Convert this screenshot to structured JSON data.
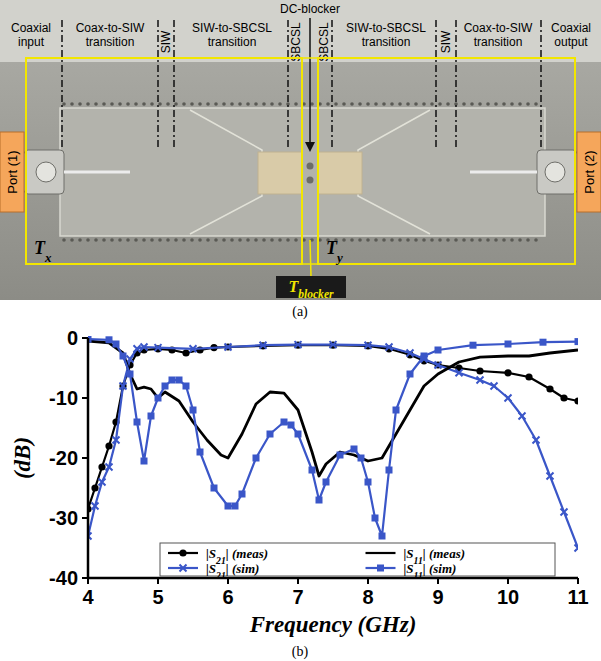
{
  "photo": {
    "section_labels": [
      "Coaxial input",
      "Coax-to-SIW transition",
      "SIW",
      "SIW-to-SBCSL transition",
      "SBCSL",
      "SBCSL",
      "SIW-to-SBCSL transition",
      "SIW",
      "Coax-to-SIW transition",
      "Coaxial output"
    ],
    "dc_blocker": "DC-blocker",
    "ports": [
      "Port (1)",
      "Port (2)"
    ],
    "blocks": [
      "Tx",
      "Ty",
      "Tblocker"
    ]
  },
  "captions": [
    "(a)",
    "(b)"
  ],
  "chart_data": {
    "type": "line",
    "x_label": "Frequency (GHz)",
    "y_label": "(dB)",
    "xlim": [
      4,
      11
    ],
    "ylim": [
      -40,
      0
    ],
    "xticks": [
      4,
      5,
      6,
      7,
      8,
      9,
      10,
      11
    ],
    "yticks": [
      -40,
      -30,
      -20,
      -10,
      0
    ],
    "grid": false,
    "legend": "lower center",
    "series": [
      {
        "name": "|S21| (meas)",
        "color": "#000000",
        "marker": "circle",
        "line_style": "solid",
        "x": [
          4,
          4.1,
          4.2,
          4.3,
          4.4,
          4.5,
          4.6,
          4.7,
          4.8,
          5.0,
          5.2,
          5.4,
          5.6,
          5.8,
          6.0,
          6.5,
          7.0,
          7.5,
          8.0,
          8.3,
          8.6,
          8.8,
          9.0,
          9.3,
          9.6,
          10.0,
          10.3,
          10.6,
          10.8,
          11.0
        ],
        "values": [
          -28.5,
          -25,
          -21.5,
          -18,
          -14,
          -8,
          -4.5,
          -2.5,
          -2,
          -1.8,
          -2,
          -2.5,
          -2,
          -1.6,
          -1.5,
          -1.3,
          -1.2,
          -1.2,
          -1.3,
          -1.8,
          -2.8,
          -3.8,
          -4.5,
          -5,
          -5.5,
          -5.8,
          -6.5,
          -8.5,
          -10,
          -10.5
        ]
      },
      {
        "name": "|S21| (sim)",
        "color": "#3a56c8",
        "marker": "x",
        "line_style": "solid",
        "x": [
          4,
          4.1,
          4.2,
          4.3,
          4.4,
          4.5,
          4.6,
          4.7,
          4.8,
          5.0,
          5.5,
          6.0,
          6.5,
          7.0,
          7.5,
          8.0,
          8.3,
          8.6,
          8.8,
          9.0,
          9.3,
          9.6,
          9.8,
          10.0,
          10.2,
          10.4,
          10.6,
          10.8,
          11.0
        ],
        "values": [
          -33,
          -28,
          -24,
          -21.5,
          -17,
          -8,
          -3.5,
          -1.8,
          -1.5,
          -1.6,
          -1.8,
          -1.5,
          -1.2,
          -1.1,
          -1.1,
          -1.2,
          -1.5,
          -2.5,
          -3.5,
          -4.5,
          -5.8,
          -7,
          -8,
          -10,
          -13,
          -17,
          -23,
          -29,
          -35
        ]
      },
      {
        "name": "|S11| (meas)",
        "color": "#000000",
        "marker": "none",
        "line_style": "solid",
        "x": [
          4,
          4.3,
          4.5,
          4.6,
          4.7,
          4.8,
          4.9,
          5.0,
          5.1,
          5.3,
          5.5,
          5.7,
          5.9,
          6.0,
          6.2,
          6.4,
          6.6,
          6.8,
          7.0,
          7.2,
          7.3,
          7.4,
          7.6,
          7.8,
          8.0,
          8.2,
          8.4,
          8.6,
          8.8,
          9.0,
          9.3,
          9.6,
          10.0,
          10.3,
          10.6,
          11.0
        ],
        "values": [
          -0.5,
          -0.8,
          -2.5,
          -6,
          -8.5,
          -8.2,
          -8.5,
          -10,
          -9,
          -10.5,
          -14,
          -17,
          -19.5,
          -20,
          -16,
          -11,
          -9,
          -9.2,
          -12,
          -19,
          -23,
          -21,
          -19,
          -19.5,
          -20.5,
          -20,
          -16,
          -12,
          -8,
          -6,
          -4,
          -3.2,
          -3,
          -3,
          -2.5,
          -2
        ]
      },
      {
        "name": "|S11| (sim)",
        "color": "#3a56c8",
        "marker": "square",
        "line_style": "solid",
        "x": [
          4,
          4.3,
          4.4,
          4.5,
          4.6,
          4.7,
          4.8,
          4.9,
          5.0,
          5.1,
          5.2,
          5.3,
          5.4,
          5.5,
          5.6,
          5.8,
          6.0,
          6.1,
          6.2,
          6.4,
          6.6,
          6.8,
          6.9,
          7.0,
          7.2,
          7.3,
          7.4,
          7.6,
          7.8,
          7.9,
          8.0,
          8.1,
          8.2,
          8.3,
          8.4,
          8.6,
          8.8,
          9.0,
          9.5,
          10.0,
          10.5,
          11.0
        ],
        "values": [
          -0.2,
          -0.3,
          -1,
          -3,
          -6,
          -14,
          -20.5,
          -13,
          -10,
          -8,
          -7,
          -7,
          -8,
          -12,
          -19,
          -25,
          -28,
          -28,
          -26,
          -20,
          -16,
          -14,
          -14.5,
          -16,
          -22,
          -27,
          -24,
          -19.5,
          -18.5,
          -20,
          -24,
          -30,
          -33,
          -22,
          -12,
          -6,
          -3,
          -2,
          -1.2,
          -1,
          -0.7,
          -0.6
        ]
      }
    ]
  }
}
